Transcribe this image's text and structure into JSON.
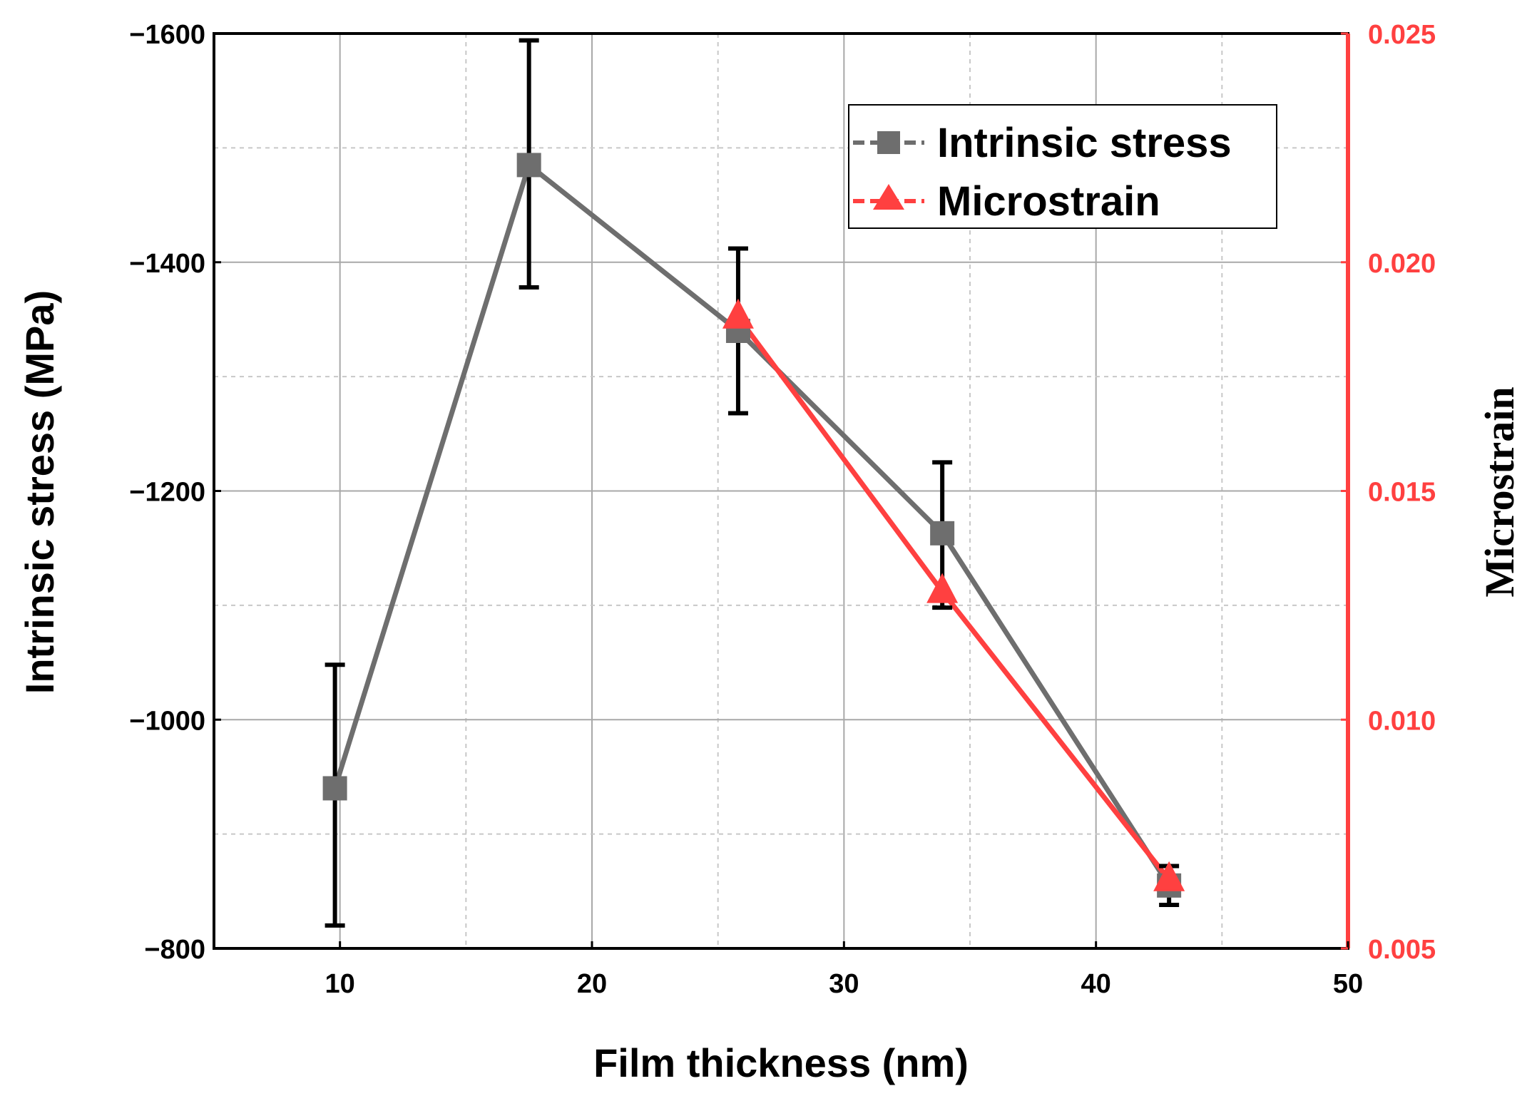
{
  "chart_data": {
    "type": "line",
    "title": "",
    "xlabel": "Film thickness (nm)",
    "ylabel": "Intrinsic stress (MPa)",
    "y2label": "Microstrain",
    "xlim": [
      5,
      50
    ],
    "ylim": [
      -800,
      -1600
    ],
    "y2lim": [
      0.005,
      0.025
    ],
    "x_ticks": [
      "10",
      "20",
      "30",
      "40",
      "50"
    ],
    "y_ticks": [
      "−1600",
      "−1400",
      "−1200",
      "−1000",
      "−800"
    ],
    "y2_ticks": [
      "0.025",
      "0.020",
      "0.015",
      "0.010",
      "0.005"
    ],
    "grid": true,
    "legend_position": "top-right",
    "series": [
      {
        "name": "Intrinsic stress",
        "axis": "left",
        "marker": "square",
        "color": "#6e6e6e",
        "x": [
          9.8,
          17.5,
          25.8,
          33.9,
          42.9
        ],
        "values": [
          -940,
          -1485,
          -1340,
          -1163,
          -855
        ],
        "err_low": [
          -820,
          -1378,
          -1268,
          -1098,
          -838
        ],
        "err_high": [
          -1048,
          -1594,
          -1412,
          -1225,
          -872
        ]
      },
      {
        "name": "Microstrain",
        "axis": "right",
        "marker": "triangle",
        "color": "#ff4040",
        "x": [
          25.8,
          33.9,
          42.9
        ],
        "values": [
          0.0188,
          0.0128,
          0.0065
        ]
      }
    ]
  },
  "colors": {
    "stress": "#6e6e6e",
    "microstrain": "#ff4040",
    "error_bar": "#000000",
    "grid": "#bdbdbd",
    "right_axis": "#ff4040"
  }
}
